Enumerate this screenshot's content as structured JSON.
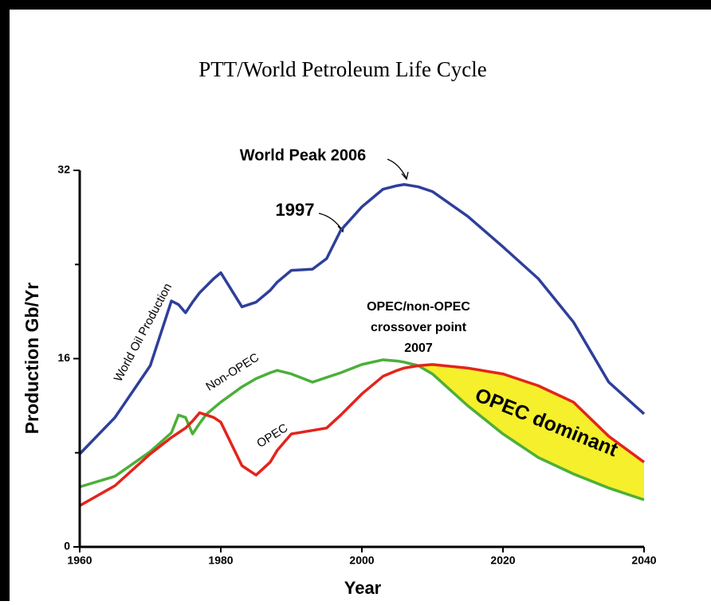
{
  "chart_data": {
    "type": "line",
    "title": "PTT/World Petroleum Life Cycle",
    "xlabel": "Year",
    "ylabel": "Production Gb/Yr",
    "x": [
      1960,
      1965,
      1970,
      1973,
      1974,
      1975,
      1976,
      1977,
      1978,
      1979,
      1980,
      1983,
      1985,
      1987,
      1988,
      1990,
      1993,
      1995,
      1997,
      2000,
      2003,
      2005,
      2006,
      2008,
      2010,
      2015,
      2020,
      2025,
      2030,
      2035,
      2040
    ],
    "series": [
      {
        "name": "World Oil Production",
        "color": "#2e3f9a",
        "values": [
          7.9,
          11.0,
          15.4,
          20.9,
          20.6,
          19.9,
          20.8,
          21.6,
          22.2,
          22.8,
          23.3,
          20.4,
          20.8,
          21.8,
          22.5,
          23.5,
          23.6,
          24.5,
          26.9,
          28.9,
          30.4,
          30.7,
          30.8,
          30.6,
          30.2,
          28.1,
          25.5,
          22.8,
          19.1,
          14.0,
          11.3
        ]
      },
      {
        "name": "Non-OPEC",
        "color": "#4caf3a",
        "values": [
          5.1,
          6.0,
          8.1,
          9.7,
          11.2,
          11.0,
          9.6,
          10.5,
          11.3,
          11.8,
          12.3,
          13.6,
          14.3,
          14.8,
          15.0,
          14.7,
          14.0,
          14.4,
          14.8,
          15.5,
          15.9,
          15.8,
          15.7,
          15.4,
          14.7,
          12.0,
          9.6,
          7.6,
          6.2,
          5.0,
          4.0
        ]
      },
      {
        "name": "OPEC",
        "color": "#e3241b",
        "values": [
          3.5,
          5.2,
          7.9,
          9.3,
          9.7,
          10.1,
          10.7,
          11.4,
          11.2,
          11.0,
          10.6,
          6.9,
          6.1,
          7.2,
          8.2,
          9.6,
          9.9,
          10.1,
          11.2,
          13.0,
          14.5,
          15.0,
          15.2,
          15.4,
          15.5,
          15.2,
          14.7,
          13.7,
          12.3,
          9.4,
          7.2
        ]
      }
    ],
    "fill_between": {
      "upper": 2,
      "lower": 1,
      "color": "#f5ef2c"
    },
    "xlim": [
      1960,
      2040
    ],
    "xticks": [
      1960,
      1980,
      2000,
      2020,
      2040
    ],
    "ylim": [
      0,
      32
    ],
    "yticks": [
      0,
      16,
      32
    ],
    "yminorticks": [
      8,
      24
    ],
    "annotations": {
      "peak": "World Peak 2006",
      "year1997": "1997",
      "crossover": [
        "OPEC/non-OPEC",
        "crossover point",
        "2007"
      ],
      "dominant": "OPEC dominant"
    }
  }
}
